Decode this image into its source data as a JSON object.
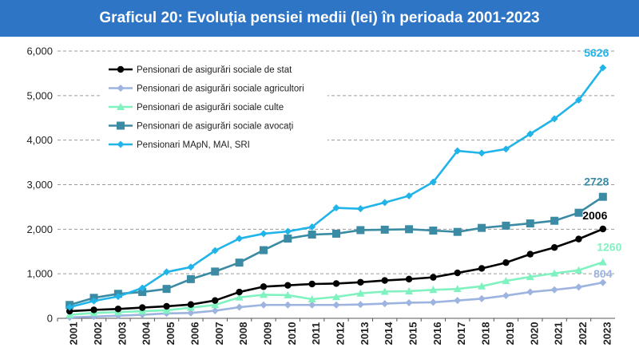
{
  "title": "Graficul 20: Evoluția pensiei medii (lei) în perioada 2001-2023",
  "colors": {
    "banner": "#2e75c6",
    "stat": "#000000",
    "agricultori": "#9db3e0",
    "culte": "#7ff2c0",
    "avocati": "#3a8ba3",
    "mapn": "#20b4e8"
  },
  "chart_data": {
    "type": "line",
    "title": "Graficul 20: Evoluția pensiei medii (lei) în perioada 2001-2023",
    "xlabel": "",
    "ylabel": "",
    "ylim": [
      0,
      6000
    ],
    "yticks": [
      "0",
      "1,000",
      "2,000",
      "3,000",
      "4,000",
      "5,000",
      "6,000"
    ],
    "grid": "horizontal dashed",
    "legend_position": "top-left",
    "x": [
      "2001",
      "2002",
      "2003",
      "2004",
      "2005",
      "2006",
      "2007",
      "2008",
      "2009",
      "2010",
      "2011",
      "2012",
      "2013",
      "2014",
      "2015",
      "2016",
      "2017",
      "2018",
      "2019",
      "2020",
      "2021",
      "2022",
      "2023"
    ],
    "series": [
      {
        "name": "Pensionari de asigurări sociale de stat",
        "color_key": "stat",
        "marker": "circle",
        "end_label": "2006",
        "values": [
          160,
          190,
          210,
          240,
          270,
          310,
          400,
          590,
          710,
          740,
          770,
          780,
          810,
          850,
          880,
          920,
          1020,
          1120,
          1250,
          1440,
          1590,
          1780,
          2006
        ]
      },
      {
        "name": "Pensionari de asigurări sociale agricultori",
        "color_key": "agricultori",
        "marker": "diamond",
        "end_label": "804",
        "values": [
          20,
          40,
          60,
          80,
          110,
          120,
          170,
          250,
          300,
          300,
          300,
          300,
          310,
          330,
          350,
          360,
          400,
          440,
          510,
          590,
          640,
          700,
          804
        ]
      },
      {
        "name": "Pensionari de asigurări sociale culte",
        "color_key": "culte",
        "marker": "triangle",
        "end_label": "1260",
        "values": [
          80,
          120,
          140,
          160,
          180,
          240,
          300,
          470,
          530,
          520,
          430,
          480,
          560,
          600,
          610,
          640,
          660,
          720,
          840,
          930,
          1010,
          1080,
          1260
        ]
      },
      {
        "name": "Pensionari de asigurări sociale avocați",
        "color_key": "avocati",
        "marker": "square",
        "end_label": "2728",
        "values": [
          300,
          460,
          550,
          590,
          660,
          880,
          1050,
          1250,
          1530,
          1790,
          1880,
          1900,
          1980,
          1990,
          2000,
          1970,
          1940,
          2030,
          2080,
          2130,
          2190,
          2370,
          2728
        ]
      },
      {
        "name": "Pensionari MApN, MAI, SRI",
        "color_key": "mapn",
        "marker": "diamond",
        "end_label": "5626",
        "values": [
          250,
          390,
          490,
          680,
          1040,
          1150,
          1520,
          1790,
          1900,
          1950,
          2050,
          2480,
          2460,
          2600,
          2750,
          3060,
          3760,
          3710,
          3800,
          4140,
          4480,
          4900,
          5626
        ]
      }
    ]
  }
}
